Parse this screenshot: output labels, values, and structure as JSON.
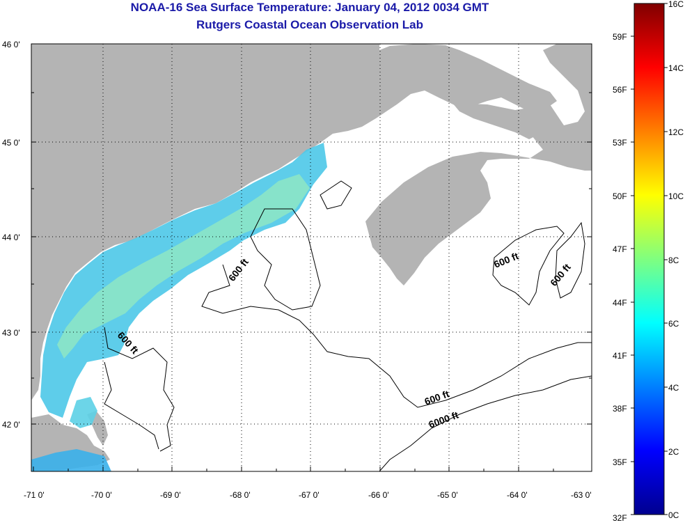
{
  "title": "NOAA-16 Sea Surface Temperature:  January 04, 2012 0034 GMT",
  "subtitle": "Rutgers Coastal Ocean Observation Lab",
  "latitude_labels": [
    "46 0'",
    "45 0'",
    "44 0'",
    "43 0'",
    "42 0'"
  ],
  "longitude_labels": [
    "-71 0'",
    "-70 0'",
    "-69 0'",
    "-68 0'",
    "-67 0'",
    "-66 0'",
    "-65 0'",
    "-64 0'",
    "-63 0'"
  ],
  "contour_labels": [
    "600 ft",
    "600 ft",
    "600 ft",
    "600 ft",
    "600 ft",
    "6000 ft"
  ],
  "colorbar": {
    "celsius_labels": [
      "16C",
      "14C",
      "12C",
      "10C",
      "8C",
      "6C",
      "4C",
      "2C",
      "0C"
    ],
    "fahrenheit_labels": [
      "59F",
      "56F",
      "53F",
      "50F",
      "47F",
      "44F",
      "41F",
      "38F",
      "35F",
      "32F"
    ]
  },
  "colors": {
    "land": "#b4b4b4",
    "ocean_nodata": "#ffffff",
    "title": "#1a1aa8",
    "sst_warm_band": "#7fe0c8",
    "sst_cool_band": "#44c8e6"
  }
}
